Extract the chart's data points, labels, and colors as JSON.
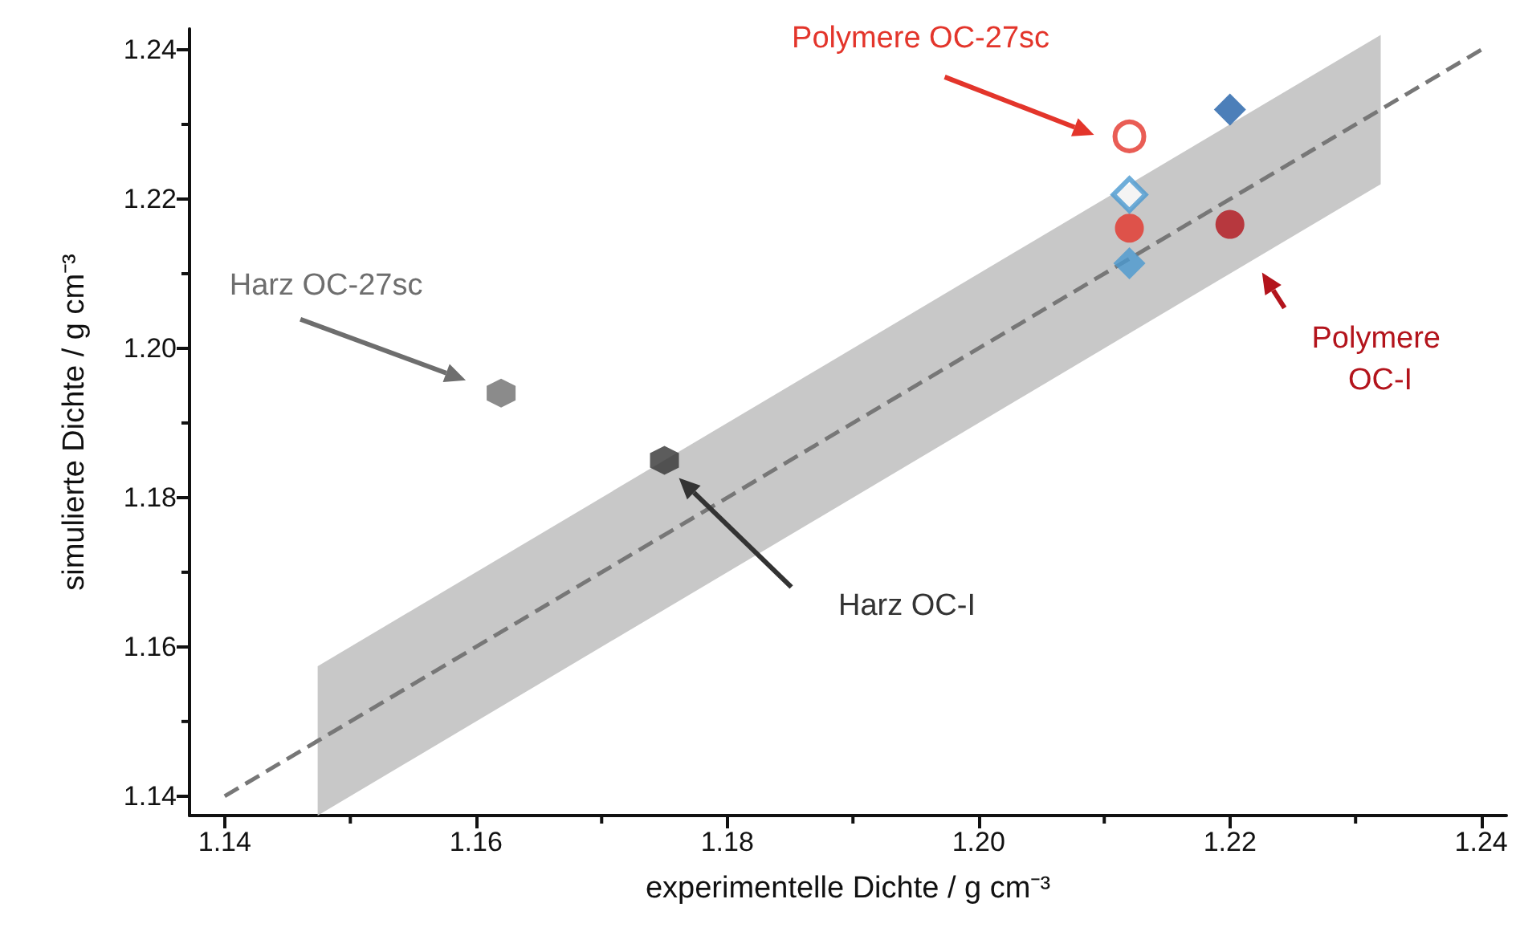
{
  "chart_data": {
    "type": "scatter",
    "xlabel": "experimentelle Dichte / g cm⁻³",
    "ylabel": "simulierte Dichte / g cm⁻³",
    "xlim": [
      1.1372,
      1.242
    ],
    "ylim": [
      1.1374,
      1.2428
    ],
    "xticks": [
      1.14,
      {
        "value": 1.15,
        "label": null
      },
      1.16,
      {
        "value": 1.17,
        "label": null
      },
      1.18,
      {
        "value": 1.19,
        "label": null
      },
      {
        "value": 1.2,
        "label": "1.20"
      },
      {
        "value": 1.21,
        "label": null
      },
      1.22,
      {
        "value": 1.23,
        "label": null
      },
      1.24
    ],
    "yticks": [
      1.14,
      {
        "value": 1.15,
        "label": null
      },
      1.16,
      {
        "value": 1.17,
        "label": null
      },
      1.18,
      {
        "value": 1.19,
        "label": null
      },
      {
        "value": 1.2,
        "label": "1.20"
      },
      {
        "value": 1.21,
        "label": null
      },
      1.22,
      {
        "value": 1.23,
        "label": null
      },
      1.24
    ],
    "grid": false,
    "legend": false,
    "series": [
      {
        "type": "line",
        "color": "#777777",
        "line_style": "dashed",
        "marker": "none",
        "x": [
          1.14,
          1.1474,
          1.232,
          1.24
        ],
        "values": [
          1.14,
          1.1474,
          1.232,
          1.24
        ],
        "lower": [
          null,
          1.1374,
          1.222,
          null
        ],
        "upper": [
          null,
          1.1574,
          1.242,
          null
        ]
      },
      {
        "name": "Harz OC-27sc",
        "color": "#6e6e6e",
        "x": [
          1.162
        ],
        "values": [
          1.194
        ]
      },
      {
        "name": "Harz OC-I",
        "color": "#333333",
        "x": [
          1.175
        ],
        "values": [
          1.185
        ]
      },
      {
        "name": "Polymere OC-27sc",
        "color": "#e3352b",
        "marker": "circle-open",
        "x": [
          1.212
        ],
        "values": [
          1.2284
        ]
      },
      {
        "color": "#e3352b",
        "marker": "circle",
        "x": [
          1.212
        ],
        "values": [
          1.2161
        ]
      },
      {
        "name": "Polymere OC-I",
        "color": "#b3141c",
        "marker": "circle",
        "x": [
          1.22
        ],
        "values": [
          1.2166
        ]
      },
      {
        "color": "#1f5fa8",
        "marker": "diamond",
        "x": [
          1.22
        ],
        "values": [
          1.232
        ]
      },
      {
        "color": "#4a98d0",
        "marker": "diamond-open",
        "x": [
          1.212
        ],
        "values": [
          1.2206
        ]
      },
      {
        "color": "#4a98d0",
        "marker": "diamond",
        "x": [
          1.212
        ],
        "values": [
          1.2114
        ]
      }
    ]
  }
}
